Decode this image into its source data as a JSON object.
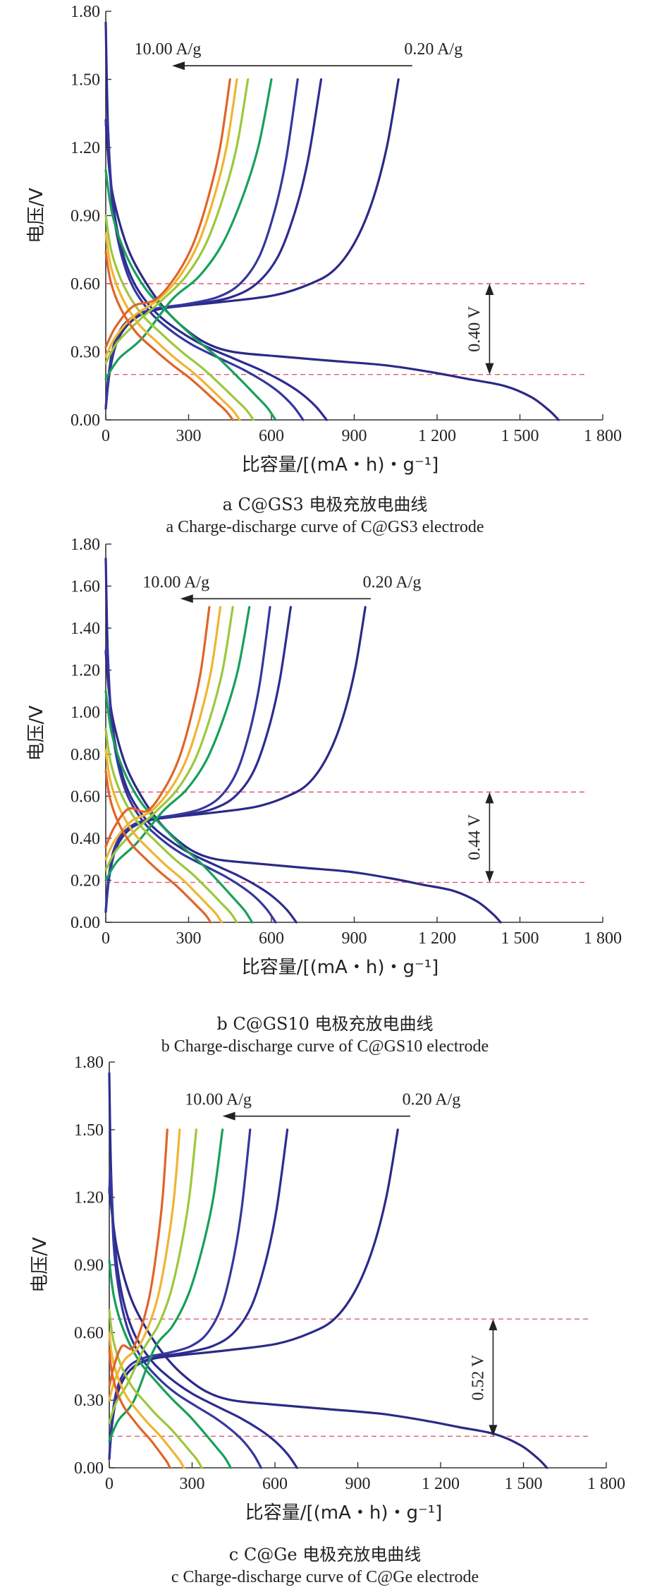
{
  "chart_data": [
    {
      "type": "line",
      "caption_cn": "a  C@GS3 电极充放电曲线",
      "caption_en": "a  Charge-discharge curve of C@GS3 electrode",
      "ylabel": "电压/V",
      "xlabel": "比容量/[(mA・h)・g⁻¹]",
      "xlim": [
        0,
        1800
      ],
      "ylim": [
        0,
        1.8
      ],
      "xticks": [
        "0",
        "300",
        "600",
        "900",
        "1 200",
        "1 500",
        "1 800"
      ],
      "yticks": [
        "0.00",
        "0.30",
        "0.60",
        "0.90",
        "1.20",
        "1.50",
        "1.80"
      ],
      "rate_high_label": "10.00 A/g",
      "rate_low_label": "0.20 A/g",
      "gap_label": "0.40 V",
      "dash_high": 0.6,
      "dash_low": 0.2,
      "ann_x": 1390,
      "arrow_x0": 1110,
      "arrow_x1": 240,
      "arrow_y": 1.56,
      "series": [
        {
          "color": "#2b2a86",
          "charge_cap": 1060,
          "dis_cap": 1640,
          "dis_start": 1.32,
          "charge_start": 0.05,
          "style": "low"
        },
        {
          "color": "#2d2c90",
          "charge_cap": 780,
          "dis_cap": 800,
          "dis_start": 1.75,
          "charge_start": 0.05,
          "style": "mid"
        },
        {
          "color": "#35379e",
          "charge_cap": 695,
          "dis_cap": 715,
          "dis_start": 1.3,
          "charge_start": 0.05,
          "style": "mid"
        },
        {
          "color": "#18a05a",
          "charge_cap": 600,
          "dis_cap": 615,
          "dis_start": 1.1,
          "charge_start": 0.18,
          "style": "hi"
        },
        {
          "color": "#9cc83c",
          "charge_cap": 515,
          "dis_cap": 535,
          "dis_start": 0.9,
          "charge_start": 0.25,
          "style": "hi"
        },
        {
          "color": "#f0b432",
          "charge_cap": 475,
          "dis_cap": 485,
          "dis_start": 0.82,
          "charge_start": 0.28,
          "style": "hi"
        },
        {
          "color": "#e06428",
          "charge_cap": 450,
          "dis_cap": 460,
          "dis_start": 0.74,
          "charge_start": 0.32,
          "style": "hi"
        }
      ]
    },
    {
      "type": "line",
      "caption_cn": "b  C@GS10 电极充放电曲线",
      "caption_en": "b  Charge-discharge curve of C@GS10 electrode",
      "ylabel": "电压/V",
      "xlabel": "比容量/[(mA・h)・g⁻¹]",
      "xlim": [
        0,
        1800
      ],
      "ylim": [
        0,
        1.8
      ],
      "xticks": [
        "0",
        "300",
        "600",
        "900",
        "1 200",
        "1 500",
        "1 800"
      ],
      "yticks": [
        "0.00",
        "0.20",
        "0.40",
        "0.60",
        "0.80",
        "1.00",
        "1.20",
        "1.40",
        "1.60",
        "1.80"
      ],
      "rate_high_label": "10.00 A/g",
      "rate_low_label": "0.20 A/g",
      "gap_label": "0.44 V",
      "dash_high": 0.62,
      "dash_low": 0.19,
      "ann_x": 1390,
      "arrow_x0": 960,
      "arrow_x1": 270,
      "arrow_y": 1.54,
      "series": [
        {
          "color": "#2b2a86",
          "charge_cap": 940,
          "dis_cap": 1430,
          "dis_start": 1.29,
          "charge_start": 0.05,
          "style": "low"
        },
        {
          "color": "#2d2c90",
          "charge_cap": 670,
          "dis_cap": 690,
          "dis_start": 1.73,
          "charge_start": 0.05,
          "style": "mid"
        },
        {
          "color": "#35379e",
          "charge_cap": 595,
          "dis_cap": 615,
          "dis_start": 1.28,
          "charge_start": 0.05,
          "style": "mid"
        },
        {
          "color": "#18a05a",
          "charge_cap": 520,
          "dis_cap": 530,
          "dis_start": 1.1,
          "charge_start": 0.2,
          "style": "hi"
        },
        {
          "color": "#9cc83c",
          "charge_cap": 460,
          "dis_cap": 475,
          "dis_start": 0.92,
          "charge_start": 0.25,
          "style": "hi"
        },
        {
          "color": "#f0b432",
          "charge_cap": 415,
          "dis_cap": 420,
          "dis_start": 0.82,
          "charge_start": 0.3,
          "style": "hi"
        },
        {
          "color": "#e06428",
          "charge_cap": 375,
          "dis_cap": 380,
          "dis_start": 0.72,
          "charge_start": 0.36,
          "style": "hi"
        }
      ]
    },
    {
      "type": "line",
      "caption_cn": "c  C@Ge 电极充放电曲线",
      "caption_en": "c  Charge-discharge curve of C@Ge electrode",
      "ylabel": "电压/V",
      "xlabel": "比容量/[(mA・h)・g⁻¹]",
      "xlim": [
        0,
        1800
      ],
      "ylim": [
        0,
        1.8
      ],
      "xticks": [
        "0",
        "300",
        "600",
        "900",
        "1 200",
        "1 500",
        "1 800"
      ],
      "yticks": [
        "0.00",
        "0.30",
        "0.60",
        "0.90",
        "1.20",
        "1.50",
        "1.80"
      ],
      "rate_high_label": "10.00 A/g",
      "rate_low_label": "0.20 A/g",
      "gap_label": "0.52 V",
      "dash_high": 0.66,
      "dash_low": 0.14,
      "ann_x": 1390,
      "arrow_x0": 1090,
      "arrow_x1": 410,
      "arrow_y": 1.56,
      "series": [
        {
          "color": "#2b2a86",
          "charge_cap": 1045,
          "dis_cap": 1585,
          "dis_start": 1.24,
          "charge_start": 0.04,
          "style": "low"
        },
        {
          "color": "#2d2c90",
          "charge_cap": 645,
          "dis_cap": 680,
          "dis_start": 1.75,
          "charge_start": 0.04,
          "style": "mid"
        },
        {
          "color": "#35379e",
          "charge_cap": 510,
          "dis_cap": 550,
          "dis_start": 1.22,
          "charge_start": 0.04,
          "style": "mid"
        },
        {
          "color": "#18a05a",
          "charge_cap": 410,
          "dis_cap": 440,
          "dis_start": 0.92,
          "charge_start": 0.12,
          "style": "hi"
        },
        {
          "color": "#9cc83c",
          "charge_cap": 315,
          "dis_cap": 335,
          "dis_start": 0.7,
          "charge_start": 0.2,
          "style": "hi"
        },
        {
          "color": "#f0b432",
          "charge_cap": 255,
          "dis_cap": 270,
          "dis_start": 0.6,
          "charge_start": 0.3,
          "style": "hi"
        },
        {
          "color": "#e06428",
          "charge_cap": 210,
          "dis_cap": 220,
          "dis_start": 0.52,
          "charge_start": 0.36,
          "style": "hi"
        }
      ]
    }
  ]
}
